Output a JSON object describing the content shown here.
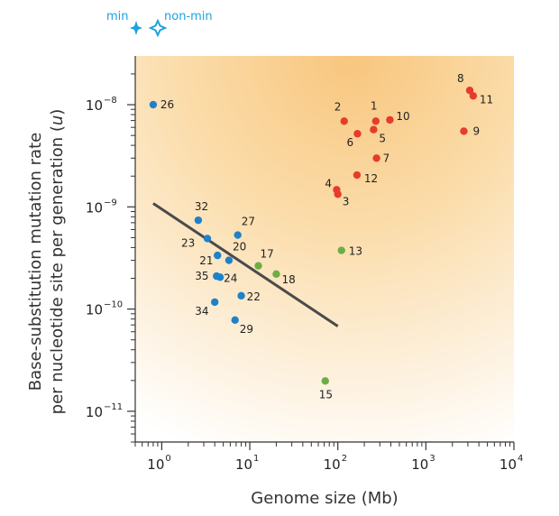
{
  "chart_data": {
    "type": "scatter",
    "xlabel": "Genome size (Mb)",
    "ylabel_line1": "Base-substitution mutation rate",
    "ylabel_line2": "per nucleotide site per generation (u)",
    "xscale": "log",
    "yscale": "log",
    "xlim": [
      0.5,
      10000
    ],
    "ylim": [
      5e-12,
      3e-08
    ],
    "x_ticks": [
      {
        "base": "10",
        "exp": "0"
      },
      {
        "base": "10",
        "exp": "1"
      },
      {
        "base": "10",
        "exp": "2"
      },
      {
        "base": "10",
        "exp": "3"
      },
      {
        "base": "10",
        "exp": "4"
      }
    ],
    "y_ticks": [
      {
        "base": "10",
        "exp": "−8"
      },
      {
        "base": "10",
        "exp": "−9"
      },
      {
        "base": "10",
        "exp": "−10"
      },
      {
        "base": "10",
        "exp": "−11"
      }
    ],
    "legend": {
      "min_label": "min",
      "nonmin_label": "non-min",
      "color": "#1aa3e0"
    },
    "trend_line": {
      "x": [
        0.8,
        100
      ],
      "y": [
        1.08e-09,
        6.8e-11
      ],
      "color": "#4a4a4a"
    },
    "series": [
      {
        "name": "red",
        "color": "#e53c2b",
        "points": [
          {
            "label": "1",
            "x": 270,
            "y": 6.9e-09
          },
          {
            "label": "2",
            "x": 118,
            "y": 6.9e-09
          },
          {
            "label": "3",
            "x": 100,
            "y": 1.33e-09
          },
          {
            "label": "4",
            "x": 97,
            "y": 1.47e-09
          },
          {
            "label": "5",
            "x": 255,
            "y": 5.7e-09
          },
          {
            "label": "6",
            "x": 167,
            "y": 5.2e-09
          },
          {
            "label": "7",
            "x": 275,
            "y": 3e-09
          },
          {
            "label": "8",
            "x": 3150,
            "y": 1.38e-08
          },
          {
            "label": "9",
            "x": 2700,
            "y": 5.5e-09
          },
          {
            "label": "10",
            "x": 390,
            "y": 7.1e-09
          },
          {
            "label": "11",
            "x": 3450,
            "y": 1.22e-08
          },
          {
            "label": "12",
            "x": 165,
            "y": 2.05e-09
          }
        ]
      },
      {
        "name": "green",
        "color": "#6cae45",
        "points": [
          {
            "label": "13",
            "x": 110,
            "y": 3.75e-10
          },
          {
            "label": "15",
            "x": 72,
            "y": 1.98e-11
          },
          {
            "label": "17",
            "x": 12.5,
            "y": 2.65e-10
          },
          {
            "label": "18",
            "x": 20,
            "y": 2.2e-10
          }
        ]
      },
      {
        "name": "blue",
        "color": "#1e82c8",
        "points": [
          {
            "label": "20",
            "x": 5.8,
            "y": 3e-10
          },
          {
            "label": "21",
            "x": 4.3,
            "y": 3.35e-10
          },
          {
            "label": "22",
            "x": 8.0,
            "y": 1.35e-10
          },
          {
            "label": "23",
            "x": 3.3,
            "y": 4.9e-10
          },
          {
            "label": "24",
            "x": 4.6,
            "y": 2.05e-10
          },
          {
            "label": "26",
            "x": 0.8,
            "y": 1e-08
          },
          {
            "label": "27",
            "x": 7.3,
            "y": 5.3e-10
          },
          {
            "label": "29",
            "x": 6.8,
            "y": 7.8e-11
          },
          {
            "label": "32",
            "x": 2.6,
            "y": 7.4e-10
          },
          {
            "label": "34",
            "x": 4.0,
            "y": 1.17e-10
          },
          {
            "label": "35",
            "x": 4.2,
            "y": 2.1e-10
          }
        ]
      }
    ]
  }
}
